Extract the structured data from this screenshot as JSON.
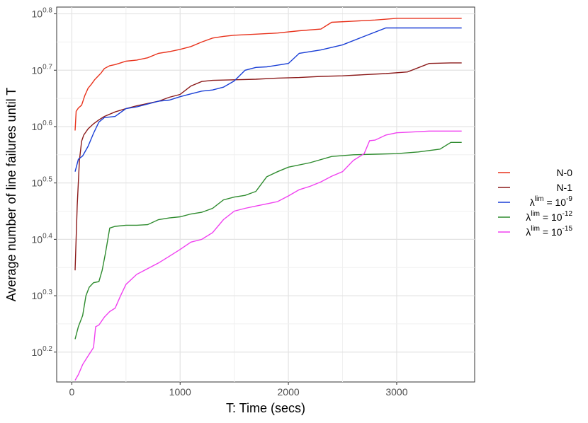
{
  "chart_data": {
    "type": "line",
    "title": "",
    "xlabel": "T: Time (secs)",
    "ylabel": "Average number of line failures until T",
    "xlim": [
      -140,
      3720
    ],
    "ylim_log10": [
      0.147,
      0.812
    ],
    "y_scale": "log10",
    "x_ticks": [
      0,
      1000,
      2000,
      3000
    ],
    "x_tick_labels": [
      "0",
      "1000",
      "2000",
      "3000"
    ],
    "y_ticks_log10": [
      0.2,
      0.3,
      0.4,
      0.5,
      0.6,
      0.7,
      0.8
    ],
    "y_tick_bases": [
      "10",
      "10",
      "10",
      "10",
      "10",
      "10",
      "10"
    ],
    "y_tick_exponents": [
      "0.2",
      "0.3",
      "0.4",
      "0.5",
      "0.6",
      "0.7",
      "0.8"
    ],
    "grid": true,
    "legend_position": "right",
    "series": [
      {
        "label_main": "N-0",
        "label_sup": "",
        "label_rest": "",
        "color": "#e8321c",
        "points": [
          [
            30,
            0.593
          ],
          [
            40,
            0.627
          ],
          [
            60,
            0.633
          ],
          [
            90,
            0.638
          ],
          [
            120,
            0.655
          ],
          [
            150,
            0.668
          ],
          [
            180,
            0.675
          ],
          [
            210,
            0.683
          ],
          [
            240,
            0.689
          ],
          [
            270,
            0.695
          ],
          [
            300,
            0.703
          ],
          [
            350,
            0.708
          ],
          [
            400,
            0.71
          ],
          [
            450,
            0.713
          ],
          [
            500,
            0.716
          ],
          [
            600,
            0.718
          ],
          [
            700,
            0.722
          ],
          [
            800,
            0.73
          ],
          [
            900,
            0.733
          ],
          [
            1000,
            0.737
          ],
          [
            1100,
            0.742
          ],
          [
            1200,
            0.75
          ],
          [
            1300,
            0.757
          ],
          [
            1400,
            0.76
          ],
          [
            1500,
            0.762
          ],
          [
            1700,
            0.764
          ],
          [
            1900,
            0.766
          ],
          [
            2100,
            0.77
          ],
          [
            2300,
            0.773
          ],
          [
            2400,
            0.785
          ],
          [
            2600,
            0.787
          ],
          [
            2800,
            0.789
          ],
          [
            3000,
            0.792
          ],
          [
            3300,
            0.792
          ],
          [
            3600,
            0.792
          ]
        ]
      },
      {
        "label_main": "N-1",
        "label_sup": "",
        "label_rest": "",
        "color": "#8b1a1a",
        "points": [
          [
            30,
            0.345
          ],
          [
            50,
            0.46
          ],
          [
            70,
            0.54
          ],
          [
            90,
            0.574
          ],
          [
            110,
            0.585
          ],
          [
            150,
            0.596
          ],
          [
            200,
            0.605
          ],
          [
            250,
            0.612
          ],
          [
            300,
            0.618
          ],
          [
            400,
            0.626
          ],
          [
            500,
            0.632
          ],
          [
            600,
            0.637
          ],
          [
            700,
            0.641
          ],
          [
            800,
            0.645
          ],
          [
            900,
            0.652
          ],
          [
            1000,
            0.657
          ],
          [
            1100,
            0.672
          ],
          [
            1200,
            0.68
          ],
          [
            1300,
            0.682
          ],
          [
            1500,
            0.683
          ],
          [
            1700,
            0.684
          ],
          [
            1900,
            0.686
          ],
          [
            2100,
            0.687
          ],
          [
            2300,
            0.689
          ],
          [
            2500,
            0.69
          ],
          [
            2700,
            0.692
          ],
          [
            2900,
            0.694
          ],
          [
            3100,
            0.697
          ],
          [
            3300,
            0.712
          ],
          [
            3500,
            0.713
          ],
          [
            3600,
            0.713
          ]
        ]
      },
      {
        "label_main": "λ",
        "label_sup": "lim",
        "label_rest": " = 10",
        "label_exp": "-9",
        "color": "#1a3fd6",
        "points": [
          [
            30,
            0.52
          ],
          [
            60,
            0.542
          ],
          [
            100,
            0.548
          ],
          [
            150,
            0.565
          ],
          [
            200,
            0.588
          ],
          [
            250,
            0.608
          ],
          [
            300,
            0.616
          ],
          [
            350,
            0.617
          ],
          [
            400,
            0.618
          ],
          [
            500,
            0.632
          ],
          [
            600,
            0.635
          ],
          [
            700,
            0.64
          ],
          [
            800,
            0.645
          ],
          [
            900,
            0.647
          ],
          [
            1000,
            0.653
          ],
          [
            1100,
            0.658
          ],
          [
            1200,
            0.663
          ],
          [
            1300,
            0.665
          ],
          [
            1400,
            0.67
          ],
          [
            1500,
            0.681
          ],
          [
            1600,
            0.7
          ],
          [
            1700,
            0.705
          ],
          [
            1800,
            0.706
          ],
          [
            2000,
            0.712
          ],
          [
            2100,
            0.73
          ],
          [
            2300,
            0.736
          ],
          [
            2500,
            0.745
          ],
          [
            2700,
            0.76
          ],
          [
            2900,
            0.775
          ],
          [
            3100,
            0.775
          ],
          [
            3400,
            0.775
          ],
          [
            3600,
            0.775
          ]
        ]
      },
      {
        "label_main": "λ",
        "label_sup": "lim",
        "label_rest": " = 10",
        "label_exp": "-12",
        "color": "#2e8b2e",
        "points": [
          [
            30,
            0.223
          ],
          [
            60,
            0.245
          ],
          [
            100,
            0.265
          ],
          [
            130,
            0.3
          ],
          [
            160,
            0.315
          ],
          [
            200,
            0.323
          ],
          [
            250,
            0.325
          ],
          [
            280,
            0.345
          ],
          [
            310,
            0.375
          ],
          [
            350,
            0.42
          ],
          [
            400,
            0.423
          ],
          [
            500,
            0.425
          ],
          [
            600,
            0.425
          ],
          [
            700,
            0.426
          ],
          [
            800,
            0.435
          ],
          [
            900,
            0.438
          ],
          [
            1000,
            0.44
          ],
          [
            1100,
            0.445
          ],
          [
            1200,
            0.448
          ],
          [
            1300,
            0.455
          ],
          [
            1400,
            0.47
          ],
          [
            1500,
            0.475
          ],
          [
            1600,
            0.478
          ],
          [
            1700,
            0.485
          ],
          [
            1800,
            0.511
          ],
          [
            1900,
            0.52
          ],
          [
            2000,
            0.528
          ],
          [
            2200,
            0.536
          ],
          [
            2400,
            0.547
          ],
          [
            2600,
            0.55
          ],
          [
            2800,
            0.551
          ],
          [
            3000,
            0.552
          ],
          [
            3200,
            0.555
          ],
          [
            3400,
            0.56
          ],
          [
            3500,
            0.572
          ],
          [
            3600,
            0.572
          ]
        ]
      },
      {
        "label_main": "λ",
        "label_sup": "lim",
        "label_rest": " = 10",
        "label_exp": "-15",
        "color": "#f040f0",
        "points": [
          [
            30,
            0.15
          ],
          [
            60,
            0.16
          ],
          [
            100,
            0.178
          ],
          [
            150,
            0.193
          ],
          [
            200,
            0.208
          ],
          [
            220,
            0.245
          ],
          [
            250,
            0.248
          ],
          [
            300,
            0.262
          ],
          [
            350,
            0.272
          ],
          [
            400,
            0.278
          ],
          [
            450,
            0.3
          ],
          [
            500,
            0.32
          ],
          [
            600,
            0.338
          ],
          [
            700,
            0.348
          ],
          [
            800,
            0.358
          ],
          [
            900,
            0.37
          ],
          [
            1000,
            0.382
          ],
          [
            1100,
            0.395
          ],
          [
            1200,
            0.4
          ],
          [
            1300,
            0.412
          ],
          [
            1400,
            0.435
          ],
          [
            1500,
            0.45
          ],
          [
            1600,
            0.455
          ],
          [
            1700,
            0.459
          ],
          [
            1800,
            0.463
          ],
          [
            1900,
            0.467
          ],
          [
            2000,
            0.477
          ],
          [
            2100,
            0.488
          ],
          [
            2200,
            0.494
          ],
          [
            2300,
            0.502
          ],
          [
            2400,
            0.512
          ],
          [
            2500,
            0.52
          ],
          [
            2600,
            0.54
          ],
          [
            2700,
            0.552
          ],
          [
            2750,
            0.575
          ],
          [
            2800,
            0.576
          ],
          [
            2900,
            0.585
          ],
          [
            3000,
            0.589
          ],
          [
            3100,
            0.59
          ],
          [
            3300,
            0.592
          ],
          [
            3600,
            0.592
          ]
        ]
      }
    ]
  }
}
